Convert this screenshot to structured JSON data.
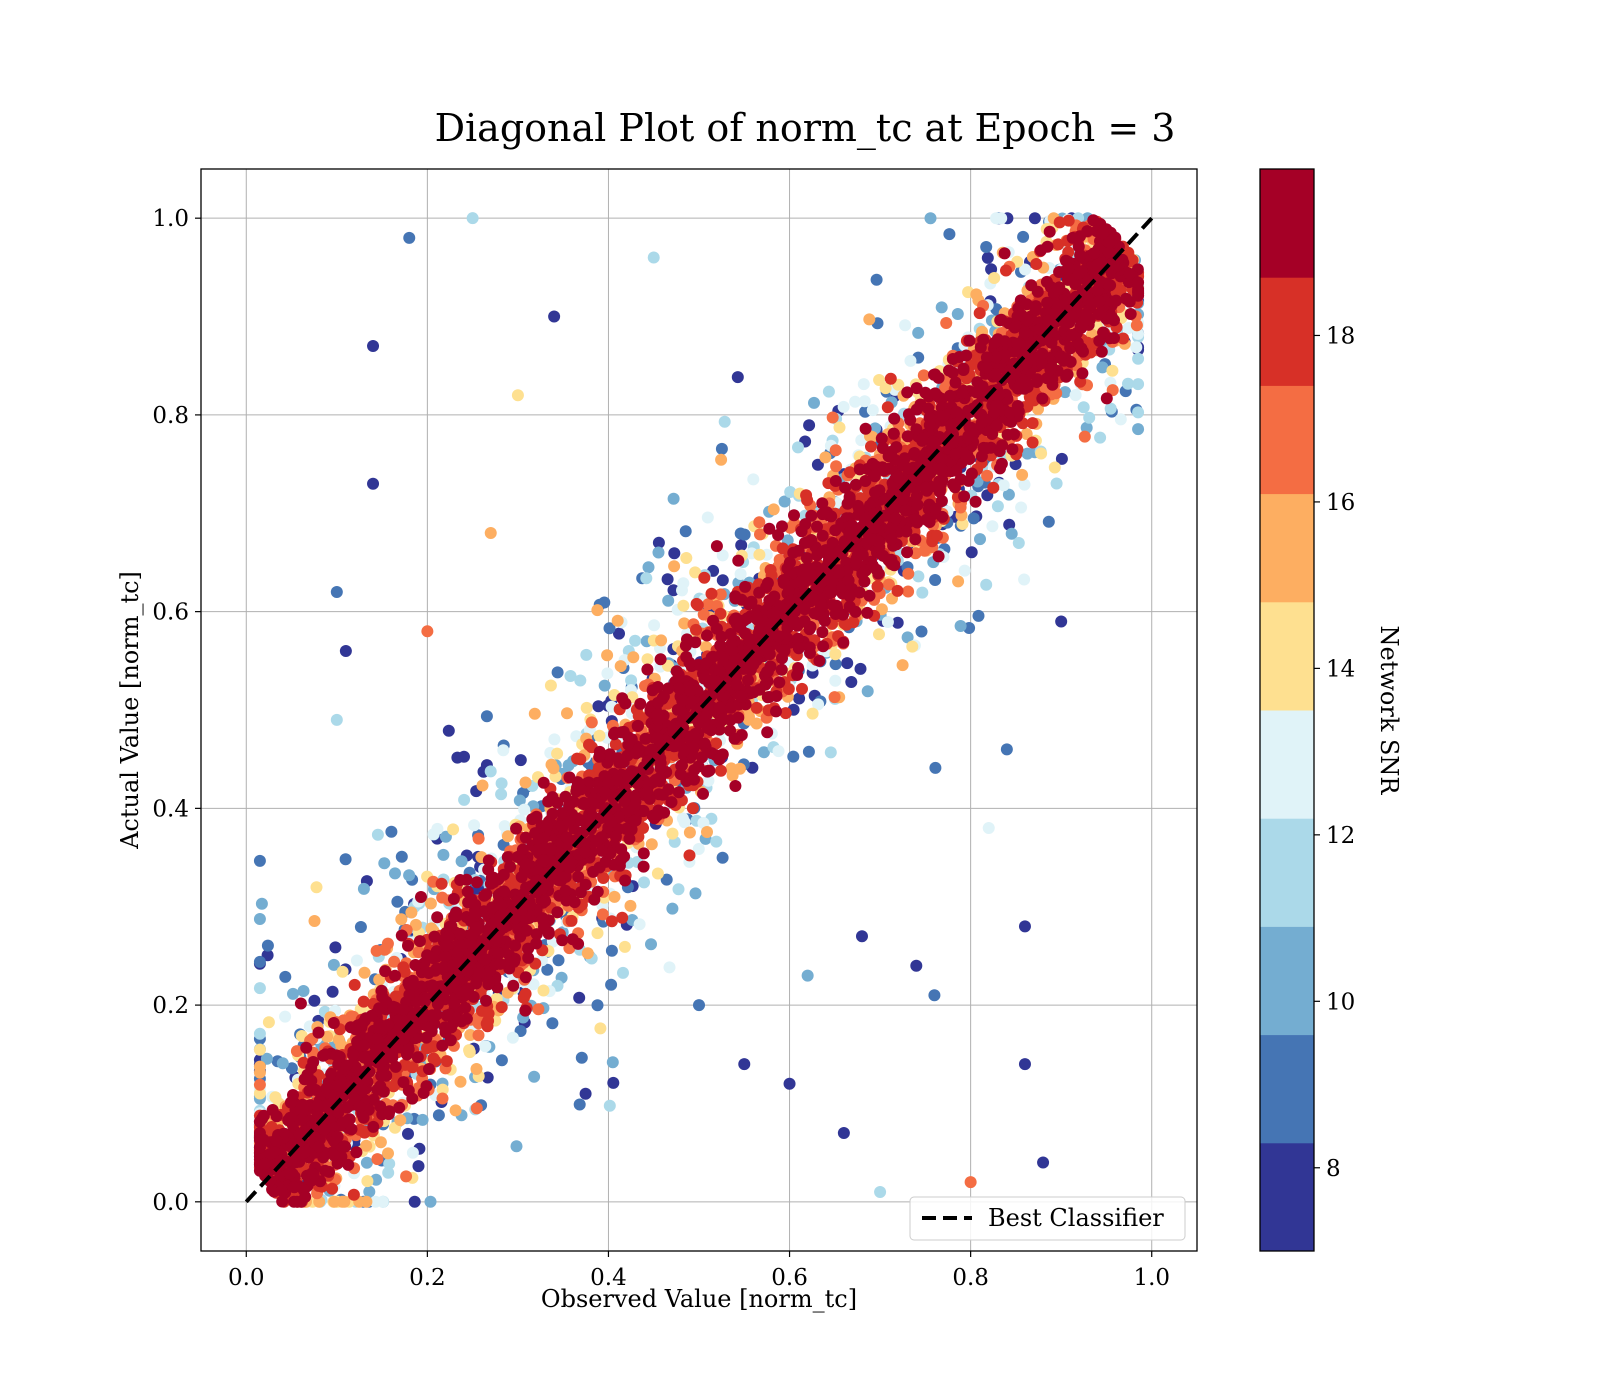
{
  "chart_data": {
    "type": "scatter",
    "title": "Diagonal Plot of norm_tc at Epoch = 3",
    "xlabel": "Observed Value [norm_tc]",
    "ylabel": "Actual Value [norm_tc]",
    "xlim": [
      -0.05,
      1.05
    ],
    "ylim": [
      -0.05,
      1.05
    ],
    "x_ticks": [
      "0.0",
      "0.2",
      "0.4",
      "0.6",
      "0.8",
      "1.0"
    ],
    "y_ticks": [
      "0.0",
      "0.2",
      "0.4",
      "0.6",
      "0.8",
      "1.0"
    ],
    "grid": true,
    "legend": {
      "placement": "lower-right",
      "entries": [
        "Best Classifier"
      ]
    },
    "reference_line": {
      "name": "Best Classifier",
      "x": [
        0,
        1
      ],
      "y": [
        0,
        1
      ],
      "style": "dashed",
      "color": "#000000"
    },
    "colorbar": {
      "label": "Network SNR",
      "range": [
        7,
        20
      ],
      "ticks": [
        "8",
        "10",
        "12",
        "14",
        "16",
        "18"
      ],
      "colors": [
        "#313695",
        "#4575b4",
        "#74add1",
        "#abd9e9",
        "#e0f3f8",
        "#fee090",
        "#fdae61",
        "#f46d43",
        "#d73027",
        "#a50026"
      ]
    },
    "scatter_description": "dense band around y=x colored high SNR (red); low-SNR points (blue) scattered further from the diagonal",
    "sample_points": [
      {
        "x": 0.18,
        "y": 0.98,
        "snr": 9
      },
      {
        "x": 0.14,
        "y": 0.87,
        "snr": 8
      },
      {
        "x": 0.25,
        "y": 1.0,
        "snr": 11
      },
      {
        "x": 0.1,
        "y": 0.62,
        "snr": 9
      },
      {
        "x": 0.11,
        "y": 0.56,
        "snr": 8
      },
      {
        "x": 0.1,
        "y": 0.49,
        "snr": 12
      },
      {
        "x": 0.14,
        "y": 0.73,
        "snr": 8
      },
      {
        "x": 0.2,
        "y": 0.58,
        "snr": 17
      },
      {
        "x": 0.9,
        "y": 0.59,
        "snr": 8
      },
      {
        "x": 0.84,
        "y": 0.46,
        "snr": 9
      },
      {
        "x": 0.82,
        "y": 0.38,
        "snr": 13
      },
      {
        "x": 0.86,
        "y": 0.28,
        "snr": 8
      },
      {
        "x": 0.86,
        "y": 0.14,
        "snr": 8
      },
      {
        "x": 0.88,
        "y": 0.04,
        "snr": 8
      },
      {
        "x": 0.8,
        "y": 0.02,
        "snr": 17
      },
      {
        "x": 0.7,
        "y": 0.01,
        "snr": 12
      },
      {
        "x": 0.76,
        "y": 0.21,
        "snr": 9
      },
      {
        "x": 0.74,
        "y": 0.24,
        "snr": 8
      },
      {
        "x": 0.68,
        "y": 0.27,
        "snr": 8
      },
      {
        "x": 0.66,
        "y": 0.07,
        "snr": 8
      },
      {
        "x": 0.3,
        "y": 0.82,
        "snr": 14
      },
      {
        "x": 0.27,
        "y": 0.68,
        "snr": 15
      },
      {
        "x": 0.34,
        "y": 0.9,
        "snr": 8
      },
      {
        "x": 0.45,
        "y": 0.96,
        "snr": 12
      },
      {
        "x": 0.5,
        "y": 0.2,
        "snr": 9
      },
      {
        "x": 0.55,
        "y": 0.14,
        "snr": 8
      },
      {
        "x": 0.6,
        "y": 0.12,
        "snr": 8
      },
      {
        "x": 0.62,
        "y": 0.23,
        "snr": 10
      }
    ]
  }
}
